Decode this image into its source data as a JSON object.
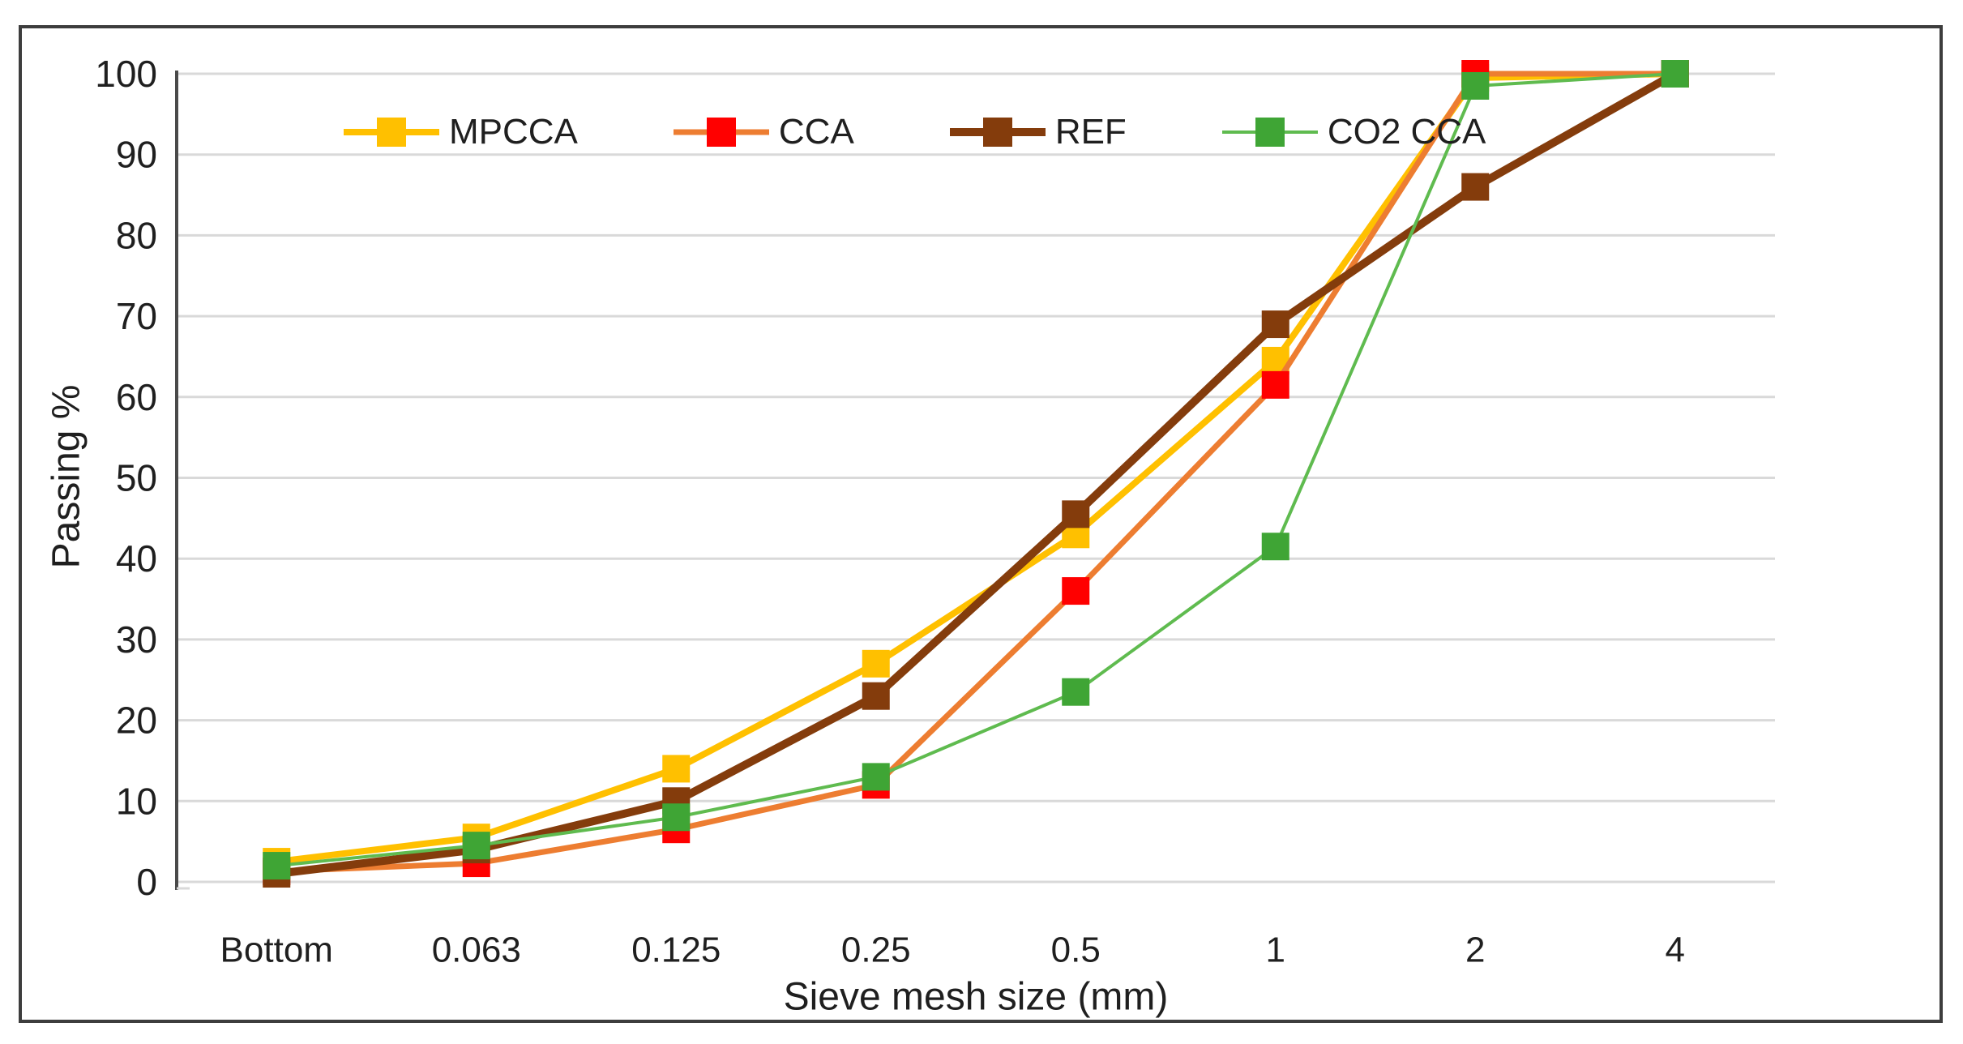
{
  "chart_data": {
    "type": "line",
    "title": "",
    "xlabel": "Sieve mesh size (mm)",
    "ylabel": "Passing %",
    "categories": [
      "Bottom",
      "0.063",
      "0.125",
      "0.25",
      "0.5",
      "1",
      "2",
      "4"
    ],
    "yticks": [
      0,
      10,
      20,
      30,
      40,
      50,
      60,
      70,
      80,
      90,
      100
    ],
    "ylim": [
      0,
      100
    ],
    "grid": "horizontal-only",
    "legend_position": "top-center-row",
    "marker": "square",
    "series": [
      {
        "name": "MPCCA",
        "values": [
          2.5,
          5.5,
          14,
          27,
          43,
          64.5,
          99.5,
          100
        ],
        "line_color": "#FFC000",
        "marker_color": "#FFC000",
        "line_width": 8
      },
      {
        "name": "CCA",
        "values": [
          1.3,
          2.3,
          6.5,
          12,
          36,
          61.5,
          100,
          100
        ],
        "line_color": "#ED7D31",
        "marker_color": "#FF0000",
        "line_width": 7
      },
      {
        "name": "REF",
        "values": [
          1,
          4,
          10,
          23,
          45.5,
          69,
          86,
          100
        ],
        "line_color": "#843C0C",
        "marker_color": "#843C0C",
        "line_width": 10
      },
      {
        "name": "CO2 CCA",
        "values": [
          2,
          4.5,
          8,
          13,
          23.5,
          41.5,
          98.5,
          100
        ],
        "line_color": "#5FBB4F",
        "marker_color": "#3FA535",
        "line_width": 4
      }
    ],
    "colors": {
      "background": "#FFFFFF",
      "frame_border": "#3D3D3D",
      "gridline": "#D9D9D9",
      "axis_line": "#4A4A4A",
      "text": "#1F1F1F"
    }
  }
}
